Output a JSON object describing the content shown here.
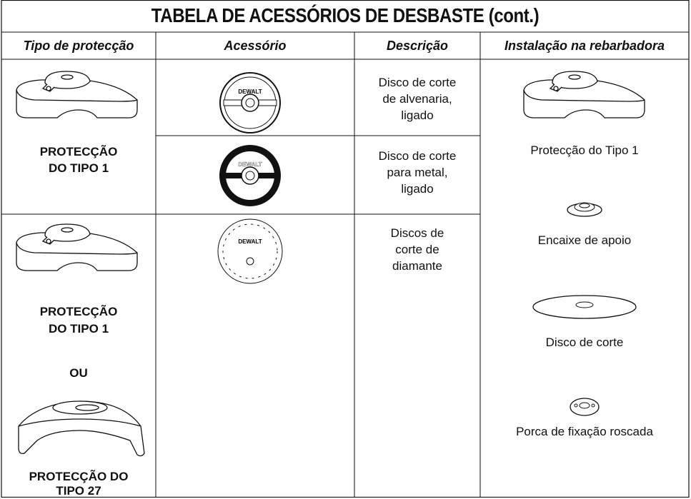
{
  "title": "TABELA DE ACESSÓRIOS DE DESBASTE (cont.)",
  "headers": [
    "Tipo de protecção",
    "Acessório",
    "Descrição",
    "Instalação na rebarbadora"
  ],
  "logo": "DEWALT",
  "rows": [
    {
      "guard": [
        "PROTECÇÃO",
        "DO TIPO 1"
      ],
      "descriptions": [
        [
          "Disco de corte",
          "de alvenaria,",
          "ligado"
        ],
        [
          "Disco de corte",
          "para metal,",
          "ligado"
        ]
      ]
    },
    {
      "guard": [
        "PROTECÇÃO",
        "DO TIPO 1"
      ],
      "or": "OU",
      "guard_alt": [
        "PROTECÇÃO DO",
        "TIPO 27"
      ],
      "descriptions": [
        [
          "Discos de",
          "corte de",
          "diamante"
        ]
      ]
    }
  ],
  "installation": [
    "Protecção do Tipo 1",
    "Encaixe de apoio",
    "Disco de corte",
    "Porca de fixação roscada"
  ]
}
